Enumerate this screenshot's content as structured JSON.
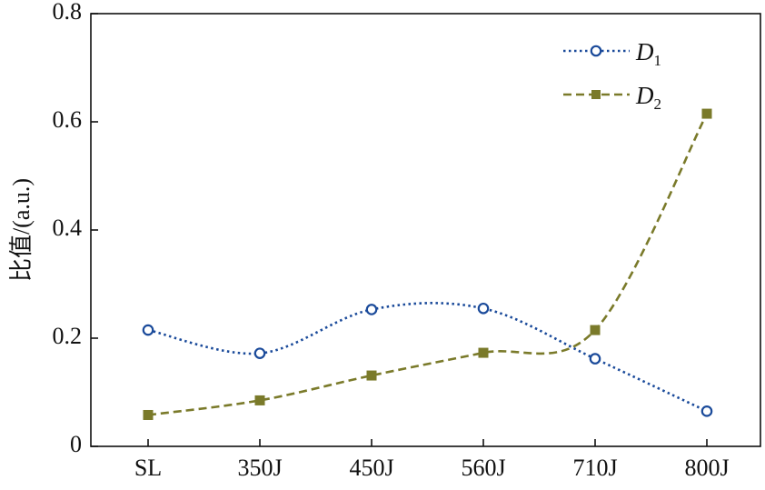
{
  "chart_data": {
    "type": "line",
    "categories": [
      "SL",
      "350J",
      "450J",
      "560J",
      "710J",
      "800J"
    ],
    "ylabel": "比值/(a.u.)",
    "ylim": [
      0,
      0.8
    ],
    "yticks": [
      "0",
      "0.2",
      "0.4",
      "0.6",
      "0.8"
    ],
    "grid": false,
    "legend_position": "top-right",
    "series": [
      {
        "name": "D",
        "subscript": "1",
        "marker": "open-circle",
        "line_style": "dotted",
        "color": "#1a4a9a",
        "values": [
          0.215,
          0.172,
          0.253,
          0.255,
          0.162,
          0.065
        ]
      },
      {
        "name": "D",
        "subscript": "2",
        "marker": "filled-square",
        "line_style": "dashed",
        "color": "#7a7a2a",
        "values": [
          0.058,
          0.085,
          0.131,
          0.173,
          0.215,
          0.615
        ]
      }
    ]
  }
}
